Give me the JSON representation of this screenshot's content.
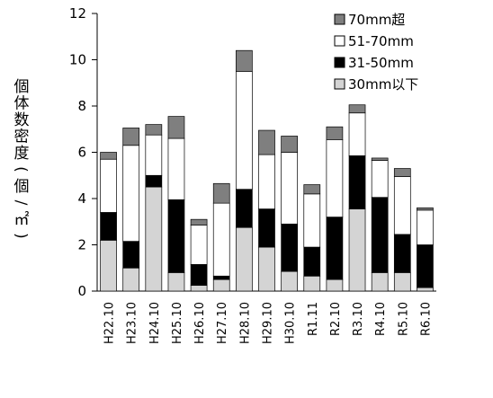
{
  "chart_data": {
    "type": "bar",
    "stacked": true,
    "ylabel": "個体数密度(個/㎡)",
    "ylim": [
      0,
      12
    ],
    "yticks": [
      0,
      2,
      4,
      6,
      8,
      10,
      12
    ],
    "grid": false,
    "legend_position": "top-right",
    "categories": [
      "H22.10",
      "H23.10",
      "H24.10",
      "H25.10",
      "H26.10",
      "H27.10",
      "H28.10",
      "H29.10",
      "H30.10",
      "R1.11",
      "R2.10",
      "R3.10",
      "R4.10",
      "R5.10",
      "R6.10"
    ],
    "series": [
      {
        "name": "30mm以下",
        "color": "#d4d4d4",
        "values": [
          2.2,
          1.0,
          4.5,
          0.8,
          0.25,
          0.5,
          2.75,
          1.9,
          0.85,
          0.65,
          0.5,
          3.55,
          0.8,
          0.8,
          0.15
        ]
      },
      {
        "name": "31-50mm",
        "color": "#000000",
        "values": [
          1.2,
          1.15,
          0.5,
          3.15,
          0.9,
          0.15,
          1.65,
          1.65,
          2.05,
          1.25,
          2.7,
          2.3,
          3.25,
          1.65,
          1.85
        ]
      },
      {
        "name": "51-70mm",
        "color": "#ffffff",
        "values": [
          2.3,
          4.15,
          1.75,
          2.65,
          1.7,
          3.15,
          5.1,
          2.35,
          3.1,
          2.3,
          3.35,
          1.85,
          1.6,
          2.5,
          1.5
        ]
      },
      {
        "name": "70mm超",
        "color": "#7f7f7f",
        "values": [
          0.3,
          0.75,
          0.45,
          0.95,
          0.25,
          0.85,
          0.9,
          1.05,
          0.7,
          0.4,
          0.55,
          0.35,
          0.1,
          0.35,
          0.1
        ]
      }
    ]
  }
}
